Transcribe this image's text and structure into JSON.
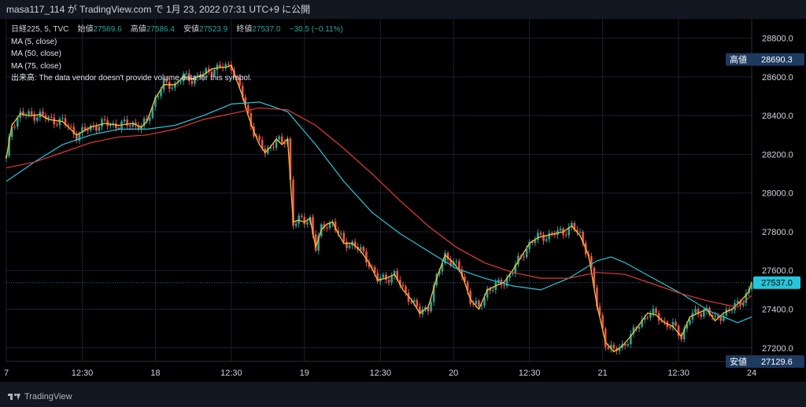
{
  "header": {
    "user": "masa117_114",
    "text": "masa117_114 が TradingView.com で 1月 23, 2022 07:31 UTC+9 に公開"
  },
  "legend": {
    "symbol_line": "日経225, 5, TVC",
    "open_label": "始値",
    "open_value": "27569.6",
    "high_label": "高値",
    "high_value": "27586.4",
    "low_label": "安値",
    "low_value": "27523.9",
    "close_label": "終値",
    "close_value": "27537.0",
    "change": "−30.5 (−0.11%)",
    "ma5": "MA (5, close)",
    "ma50": "MA (50, close)",
    "ma75": "MA (75, close)",
    "volume_note": "出来高: The data vendor doesn't provide volume data for this symbol."
  },
  "footer": {
    "brand": "TradingView"
  },
  "colors": {
    "up": "#26a69a",
    "down": "#ef5350",
    "ma5": "#fbc02d",
    "ma50": "#26c6da",
    "ma75": "#e53935",
    "badge": "#1e3a5f",
    "last_badge": "#26c6da"
  },
  "chart_data": {
    "type": "line",
    "title": "日経225, 5, TVC",
    "ylim": [
      27130,
      28900
    ],
    "y_ticks": [
      27200,
      27400,
      27600,
      27800,
      28000,
      28200,
      28400,
      28600,
      28800
    ],
    "y_tick_labels": [
      "27200.0",
      "27400.0",
      "27600.0",
      "27800.0",
      "28000.0",
      "28200.0",
      "28400.0",
      "28600.0",
      "28800.0"
    ],
    "x_ticks": [
      {
        "label": "7",
        "i": 0
      },
      {
        "label": "12:30",
        "i": 27
      },
      {
        "label": "18",
        "i": 53
      },
      {
        "label": "12:30",
        "i": 80
      },
      {
        "label": "19",
        "i": 106
      },
      {
        "label": "12:30",
        "i": 133
      },
      {
        "label": "20",
        "i": 159
      },
      {
        "label": "12:30",
        "i": 186
      },
      {
        "label": "21",
        "i": 212
      },
      {
        "label": "12:30",
        "i": 239
      },
      {
        "label": "24",
        "i": 265
      }
    ],
    "high_label": {
      "label": "高値",
      "value": "28690.3"
    },
    "low_label": {
      "label": "安値",
      "value": "27129.6"
    },
    "last_price": {
      "value": "27537.0"
    },
    "series": [
      {
        "name": "MA (5, close)",
        "x": [
          0,
          2,
          5,
          8,
          12,
          15,
          20,
          25,
          30,
          35,
          40,
          45,
          48,
          50,
          53,
          56,
          60,
          63,
          66,
          70,
          73,
          76,
          78,
          80,
          82,
          84,
          86,
          88,
          90,
          92,
          94,
          96,
          98,
          100,
          102,
          104,
          106,
          108,
          110,
          112,
          114,
          116,
          118,
          120,
          123,
          126,
          129,
          132,
          135,
          138,
          141,
          144,
          147,
          150,
          153,
          156,
          159,
          162,
          165,
          168,
          171,
          174,
          177,
          180,
          183,
          186,
          189,
          192,
          195,
          198,
          201,
          204,
          207,
          210,
          213,
          216,
          219,
          222,
          225,
          228,
          231,
          234,
          237,
          240,
          243,
          246,
          249,
          252,
          255,
          258,
          261,
          264,
          265
        ],
        "values": [
          28180,
          28350,
          28410,
          28400,
          28405,
          28380,
          28370,
          28300,
          28340,
          28360,
          28350,
          28360,
          28340,
          28370,
          28490,
          28560,
          28560,
          28600,
          28590,
          28610,
          28640,
          28650,
          28650,
          28660,
          28580,
          28500,
          28400,
          28320,
          28250,
          28210,
          28240,
          28280,
          28250,
          28280,
          27850,
          27860,
          27850,
          27870,
          27720,
          27810,
          27840,
          27850,
          27790,
          27740,
          27740,
          27700,
          27640,
          27550,
          27560,
          27580,
          27500,
          27450,
          27380,
          27410,
          27560,
          27680,
          27640,
          27580,
          27450,
          27400,
          27500,
          27520,
          27540,
          27600,
          27670,
          27740,
          27770,
          27780,
          27790,
          27800,
          27830,
          27780,
          27680,
          27420,
          27230,
          27180,
          27210,
          27260,
          27320,
          27380,
          27370,
          27330,
          27310,
          27260,
          27360,
          27380,
          27400,
          27340,
          27380,
          27400,
          27440,
          27490,
          27540
        ]
      },
      {
        "name": "MA (50, close)",
        "x": [
          0,
          10,
          20,
          30,
          40,
          50,
          60,
          70,
          80,
          90,
          100,
          110,
          120,
          130,
          140,
          150,
          160,
          170,
          180,
          190,
          200,
          210,
          215,
          220,
          230,
          240,
          250,
          260,
          265
        ],
        "values": [
          28060,
          28160,
          28250,
          28300,
          28330,
          28330,
          28350,
          28400,
          28460,
          28470,
          28420,
          28250,
          28060,
          27900,
          27790,
          27700,
          27610,
          27560,
          27520,
          27500,
          27560,
          27650,
          27670,
          27640,
          27560,
          27480,
          27390,
          27330,
          27360
        ]
      },
      {
        "name": "MA (75, close)",
        "x": [
          0,
          10,
          20,
          30,
          40,
          50,
          60,
          70,
          80,
          90,
          100,
          110,
          120,
          130,
          140,
          150,
          160,
          170,
          180,
          190,
          200,
          210,
          220,
          230,
          240,
          250,
          260,
          265
        ],
        "values": [
          28130,
          28160,
          28210,
          28260,
          28290,
          28300,
          28330,
          28380,
          28410,
          28440,
          28430,
          28350,
          28230,
          28100,
          27960,
          27830,
          27720,
          27640,
          27590,
          27560,
          27560,
          27590,
          27580,
          27530,
          27480,
          27440,
          27410,
          27470
        ]
      }
    ]
  }
}
